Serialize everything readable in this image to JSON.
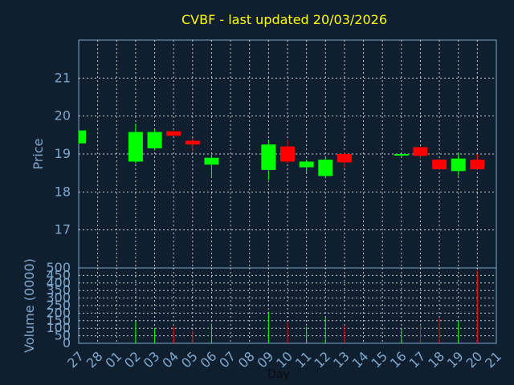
{
  "chart_data": [
    {
      "type": "candlestick",
      "title": "CVBF - last updated 20/03/2026",
      "ylabel": "Price",
      "ylim": [
        16.0,
        22.0
      ],
      "yticks": [
        "17",
        "18",
        "19",
        "20",
        "21"
      ],
      "grid": true,
      "colors": {
        "up": "#00ff00",
        "down": "#ff0000",
        "title": "#ffff00",
        "axis_text": "#7fa8cc"
      },
      "candles": [
        {
          "day": "27",
          "open": 19.28,
          "high": 19.62,
          "low": 19.25,
          "close": 19.62
        },
        {
          "day": "02",
          "open": 18.8,
          "high": 19.8,
          "low": 18.75,
          "close": 19.58
        },
        {
          "day": "03",
          "open": 19.15,
          "high": 19.65,
          "low": 19.1,
          "close": 19.58
        },
        {
          "day": "04",
          "open": 19.6,
          "high": 19.6,
          "low": 19.5,
          "close": 19.48
        },
        {
          "day": "05",
          "open": 19.35,
          "high": 19.42,
          "low": 19.05,
          "close": 19.25
        },
        {
          "day": "06",
          "open": 18.72,
          "high": 18.98,
          "low": 18.38,
          "close": 18.9
        },
        {
          "day": "09",
          "open": 18.58,
          "high": 19.38,
          "low": 18.32,
          "close": 19.25
        },
        {
          "day": "10",
          "open": 19.2,
          "high": 19.38,
          "low": 18.75,
          "close": 18.8
        },
        {
          "day": "11",
          "open": 18.65,
          "high": 18.85,
          "low": 18.5,
          "close": 18.8
        },
        {
          "day": "12",
          "open": 18.42,
          "high": 18.9,
          "low": 18.4,
          "close": 18.85
        },
        {
          "day": "13",
          "open": 19.0,
          "high": 19.05,
          "low": 18.65,
          "close": 18.78
        },
        {
          "day": "16",
          "open": 18.97,
          "high": 19.0,
          "low": 18.93,
          "close": 19.0
        },
        {
          "day": "17",
          "open": 19.18,
          "high": 19.18,
          "low": 18.88,
          "close": 18.95
        },
        {
          "day": "18",
          "open": 18.85,
          "high": 18.88,
          "low": 18.58,
          "close": 18.6
        },
        {
          "day": "19",
          "open": 18.55,
          "high": 19.02,
          "low": 18.42,
          "close": 18.88
        },
        {
          "day": "20",
          "open": 18.85,
          "high": 19.0,
          "low": 18.58,
          "close": 18.6
        }
      ]
    },
    {
      "type": "bar",
      "title": "",
      "xlabel": "Day",
      "ylabel": "Volume (0000)",
      "ylim": [
        0,
        500
      ],
      "yticks": [
        "0",
        "50",
        "100",
        "150",
        "200",
        "250",
        "300",
        "350",
        "400",
        "450",
        "500"
      ],
      "categories": [
        "27",
        "28",
        "01",
        "02",
        "03",
        "04",
        "05",
        "06",
        "07",
        "08",
        "09",
        "10",
        "11",
        "12",
        "13",
        "14",
        "15",
        "16",
        "17",
        "18",
        "19",
        "20",
        "21"
      ],
      "values": [
        0,
        0,
        0,
        145,
        100,
        110,
        80,
        130,
        0,
        0,
        210,
        140,
        110,
        170,
        115,
        0,
        0,
        100,
        120,
        165,
        145,
        480,
        0
      ],
      "bar_colors": [
        "",
        "",
        "",
        "up",
        "up",
        "down",
        "down",
        "up",
        "",
        "",
        "up",
        "down",
        "up",
        "up",
        "down",
        "",
        "",
        "up",
        "down",
        "down",
        "up",
        "down",
        ""
      ],
      "grid": true
    }
  ]
}
